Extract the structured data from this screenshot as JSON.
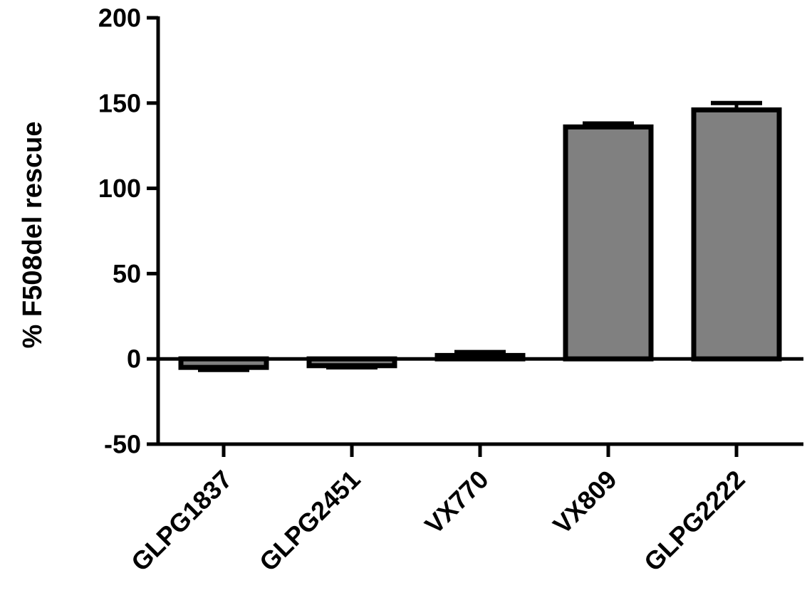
{
  "chart_data": {
    "type": "bar",
    "title": "",
    "xlabel": "",
    "ylabel": "% F508del rescue",
    "categories": [
      "GLPG1837",
      "GLPG2451",
      "VX770",
      "VX809",
      "GLPG2222"
    ],
    "values": [
      -5,
      -4,
      2,
      136,
      146
    ],
    "errors": [
      1.5,
      1,
      2,
      2,
      4
    ],
    "ylim": [
      -50,
      200
    ],
    "yticks": [
      -50,
      0,
      50,
      100,
      150,
      200
    ],
    "bar_color": "#808080",
    "outline_color": "#000000",
    "grid": false,
    "legend": "none"
  }
}
